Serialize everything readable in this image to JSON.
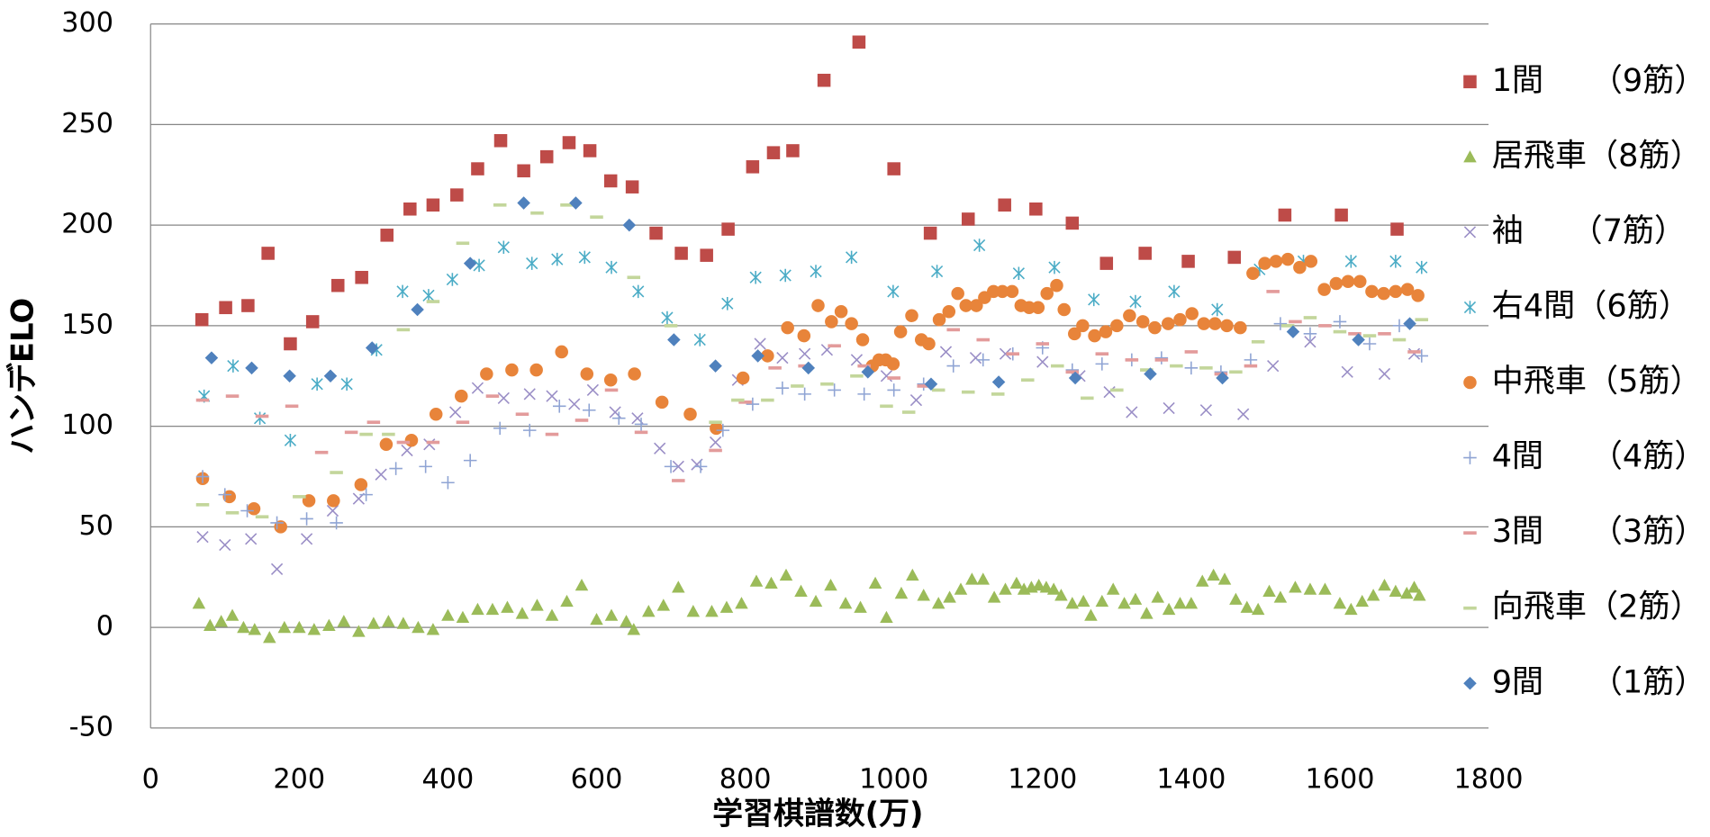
{
  "chart_data": {
    "type": "scatter",
    "xlabel": "学習棋譜数(万)",
    "ylabel": "ハンデELO",
    "xlim": [
      0,
      1800
    ],
    "ylim": [
      -50,
      300
    ],
    "xticks": [
      0,
      200,
      400,
      600,
      800,
      1000,
      1200,
      1400,
      1600,
      1800
    ],
    "yticks": [
      -50,
      0,
      50,
      100,
      150,
      200,
      250,
      300
    ],
    "grid": true,
    "legend": "right",
    "series": [
      {
        "name": "1間　　（9筋）",
        "color": "#be4b48",
        "marker": "square",
        "x": [
          69,
          101,
          131,
          158,
          188,
          218,
          252,
          284,
          318,
          349,
          380,
          412,
          440,
          471,
          502,
          533,
          563,
          591,
          619,
          648,
          680,
          714,
          748,
          777,
          810,
          838,
          864,
          906,
          953,
          1000,
          1049,
          1100,
          1149,
          1191,
          1240,
          1286,
          1338,
          1396,
          1458,
          1526,
          1602,
          1677
        ],
        "values": [
          153,
          159,
          160,
          186,
          141,
          152,
          170,
          174,
          195,
          208,
          210,
          215,
          228,
          242,
          227,
          234,
          241,
          237,
          222,
          219,
          196,
          186,
          185,
          198,
          229,
          236,
          237,
          272,
          291,
          228,
          196,
          203,
          210,
          208,
          201,
          181,
          186,
          182,
          184,
          205,
          205,
          198
        ]
      },
      {
        "name": "居飛車（8筋）",
        "color": "#9bbb59",
        "marker": "triangle",
        "x": [
          65,
          80,
          95,
          110,
          125,
          140,
          160,
          180,
          200,
          220,
          240,
          260,
          280,
          300,
          320,
          340,
          360,
          380,
          400,
          420,
          440,
          460,
          480,
          500,
          520,
          540,
          560,
          580,
          600,
          620,
          640,
          650,
          670,
          690,
          710,
          730,
          755,
          775,
          795,
          815,
          835,
          855,
          875,
          895,
          915,
          935,
          955,
          975,
          990,
          1010,
          1025,
          1040,
          1060,
          1075,
          1090,
          1105,
          1120,
          1135,
          1150,
          1165,
          1175,
          1185,
          1195,
          1205,
          1215,
          1225,
          1240,
          1255,
          1265,
          1280,
          1295,
          1310,
          1325,
          1340,
          1355,
          1370,
          1385,
          1400,
          1415,
          1430,
          1445,
          1460,
          1475,
          1490,
          1505,
          1520,
          1540,
          1560,
          1580,
          1600,
          1615,
          1630,
          1645,
          1660,
          1675,
          1690,
          1700,
          1707
        ],
        "values": [
          12,
          1,
          3,
          6,
          0,
          -1,
          -5,
          0,
          0,
          -1,
          1,
          3,
          -2,
          2,
          3,
          2,
          0,
          -1,
          6,
          5,
          9,
          9,
          10,
          7,
          11,
          6,
          13,
          21,
          4,
          6,
          3,
          -1,
          8,
          11,
          20,
          8,
          8,
          10,
          12,
          23,
          22,
          26,
          18,
          13,
          21,
          12,
          10,
          22,
          5,
          17,
          26,
          16,
          12,
          15,
          19,
          24,
          24,
          15,
          19,
          22,
          19,
          20,
          21,
          20,
          19,
          16,
          12,
          13,
          6,
          13,
          19,
          12,
          14,
          7,
          15,
          9,
          12,
          12,
          23,
          26,
          24,
          14,
          10,
          9,
          18,
          15,
          20,
          19,
          19,
          12,
          9,
          13,
          16,
          21,
          18,
          17,
          20,
          16
        ]
      },
      {
        "name": "袖　　（7筋）",
        "color": "#9a8ec6",
        "marker": "x",
        "x": [
          70,
          100,
          135,
          170,
          210,
          245,
          280,
          310,
          345,
          375,
          410,
          440,
          475,
          510,
          540,
          570,
          595,
          625,
          655,
          685,
          710,
          735,
          760,
          790,
          820,
          850,
          880,
          910,
          950,
          990,
          1030,
          1070,
          1110,
          1150,
          1200,
          1250,
          1290,
          1320,
          1370,
          1420,
          1470,
          1510,
          1560,
          1610,
          1660,
          1700
        ],
        "values": [
          45,
          41,
          44,
          29,
          44,
          58,
          64,
          76,
          88,
          91,
          107,
          119,
          114,
          116,
          115,
          111,
          118,
          107,
          104,
          89,
          80,
          81,
          92,
          123,
          141,
          134,
          136,
          138,
          133,
          125,
          113,
          137,
          134,
          136,
          132,
          125,
          117,
          107,
          109,
          108,
          106,
          130,
          142,
          127,
          126,
          136
        ]
      },
      {
        "name": "右4間（6筋）",
        "color": "#4bacc6",
        "marker": "star",
        "x": [
          72,
          111,
          147,
          188,
          224,
          264,
          304,
          339,
          374,
          406,
          442,
          475,
          513,
          547,
          584,
          620,
          656,
          695,
          739,
          776,
          814,
          854,
          895,
          943,
          999,
          1058,
          1115,
          1168,
          1216,
          1269,
          1325,
          1377,
          1435,
          1492,
          1551,
          1615,
          1675,
          1710
        ],
        "values": [
          115,
          130,
          104,
          93,
          121,
          121,
          138,
          167,
          165,
          173,
          180,
          189,
          181,
          183,
          184,
          179,
          167,
          154,
          143,
          161,
          174,
          175,
          177,
          184,
          167,
          177,
          190,
          176,
          179,
          163,
          162,
          167,
          158,
          178,
          182,
          182,
          182,
          179
        ]
      },
      {
        "name": "中飛車（5筋）",
        "color": "#e8843a",
        "marker": "circle",
        "x": [
          70,
          106,
          139,
          175,
          213,
          246,
          283,
          317,
          351,
          384,
          418,
          452,
          486,
          519,
          553,
          587,
          619,
          651,
          688,
          726,
          761,
          797,
          830,
          857,
          879,
          898,
          916,
          929,
          943,
          958,
          971,
          980,
          989,
          999,
          1009,
          1024,
          1037,
          1047,
          1061,
          1074,
          1086,
          1097,
          1111,
          1122,
          1134,
          1146,
          1159,
          1171,
          1182,
          1194,
          1206,
          1219,
          1229,
          1243,
          1254,
          1270,
          1285,
          1300,
          1317,
          1335,
          1351,
          1369,
          1385,
          1401,
          1417,
          1432,
          1448,
          1466,
          1483,
          1499,
          1514,
          1530,
          1546,
          1561,
          1579,
          1595,
          1611,
          1627,
          1643,
          1659,
          1675,
          1691,
          1705
        ],
        "values": [
          74,
          65,
          59,
          50,
          63,
          63,
          71,
          91,
          93,
          106,
          115,
          126,
          128,
          128,
          137,
          126,
          123,
          126,
          112,
          106,
          99,
          124,
          135,
          149,
          145,
          160,
          152,
          157,
          151,
          143,
          130,
          133,
          133,
          131,
          147,
          155,
          143,
          141,
          153,
          157,
          166,
          160,
          160,
          164,
          167,
          167,
          167,
          160,
          159,
          159,
          166,
          170,
          158,
          146,
          150,
          145,
          147,
          150,
          155,
          152,
          149,
          151,
          153,
          156,
          151,
          151,
          150,
          149,
          176,
          181,
          182,
          183,
          179,
          182,
          168,
          171,
          172,
          172,
          167,
          166,
          167,
          168,
          165
        ]
      },
      {
        "name": "4間　　（4筋）",
        "color": "#8fa4d4",
        "marker": "plus",
        "x": [
          70,
          100,
          130,
          170,
          210,
          250,
          290,
          330,
          370,
          400,
          430,
          470,
          510,
          550,
          590,
          630,
          660,
          700,
          740,
          770,
          810,
          850,
          880,
          920,
          960,
          1000,
          1040,
          1080,
          1120,
          1160,
          1200,
          1240,
          1280,
          1320,
          1360,
          1400,
          1440,
          1480,
          1520,
          1560,
          1600,
          1640,
          1680,
          1710
        ],
        "values": [
          75,
          66,
          58,
          52,
          54,
          52,
          66,
          79,
          80,
          72,
          83,
          99,
          98,
          110,
          108,
          104,
          101,
          80,
          80,
          98,
          111,
          119,
          116,
          118,
          116,
          118,
          121,
          130,
          133,
          136,
          139,
          128,
          131,
          133,
          134,
          129,
          127,
          133,
          151,
          146,
          152,
          141,
          150,
          135
        ]
      },
      {
        "name": "3間　　（3筋）",
        "color": "#e39b9b",
        "marker": "dash",
        "x": [
          70,
          110,
          150,
          190,
          230,
          270,
          300,
          340,
          380,
          420,
          460,
          500,
          540,
          580,
          620,
          660,
          710,
          760,
          800,
          840,
          880,
          920,
          960,
          1000,
          1040,
          1080,
          1120,
          1160,
          1200,
          1240,
          1280,
          1320,
          1360,
          1400,
          1440,
          1480,
          1510,
          1540,
          1580,
          1620,
          1660,
          1700
        ],
        "values": [
          113,
          115,
          105,
          110,
          87,
          97,
          102,
          92,
          92,
          102,
          115,
          106,
          96,
          103,
          118,
          97,
          73,
          88,
          112,
          129,
          130,
          140,
          130,
          124,
          120,
          148,
          143,
          136,
          141,
          127,
          136,
          133,
          133,
          137,
          126,
          130,
          167,
          152,
          150,
          146,
          146,
          137
        ]
      },
      {
        "name": "向飛車（2筋）",
        "color": "#c3d69b",
        "marker": "dash",
        "x": [
          70,
          110,
          150,
          200,
          250,
          290,
          320,
          340,
          380,
          420,
          470,
          520,
          560,
          600,
          650,
          700,
          760,
          790,
          830,
          870,
          910,
          950,
          990,
          1020,
          1060,
          1100,
          1140,
          1180,
          1220,
          1260,
          1300,
          1340,
          1380,
          1420,
          1460,
          1490,
          1530,
          1560,
          1600,
          1640,
          1680,
          1710
        ],
        "values": [
          61,
          57,
          55,
          65,
          77,
          96,
          96,
          148,
          162,
          191,
          210,
          206,
          210,
          204,
          174,
          150,
          102,
          113,
          113,
          120,
          121,
          125,
          110,
          107,
          118,
          117,
          116,
          123,
          130,
          114,
          118,
          128,
          130,
          129,
          127,
          142,
          150,
          154,
          147,
          145,
          143,
          153
        ]
      },
      {
        "name": "9間　　（1筋）",
        "color": "#4f81bd",
        "marker": "diamond",
        "x": [
          82,
          136,
          187,
          242,
          298,
          359,
          430,
          502,
          572,
          644,
          704,
          760,
          817,
          885,
          965,
          1050,
          1141,
          1244,
          1345,
          1442,
          1537,
          1625,
          1694
        ],
        "values": [
          134,
          129,
          125,
          125,
          139,
          158,
          181,
          211,
          211,
          200,
          143,
          130,
          135,
          129,
          127,
          121,
          122,
          124,
          126,
          124,
          147,
          143,
          151
        ]
      }
    ]
  }
}
